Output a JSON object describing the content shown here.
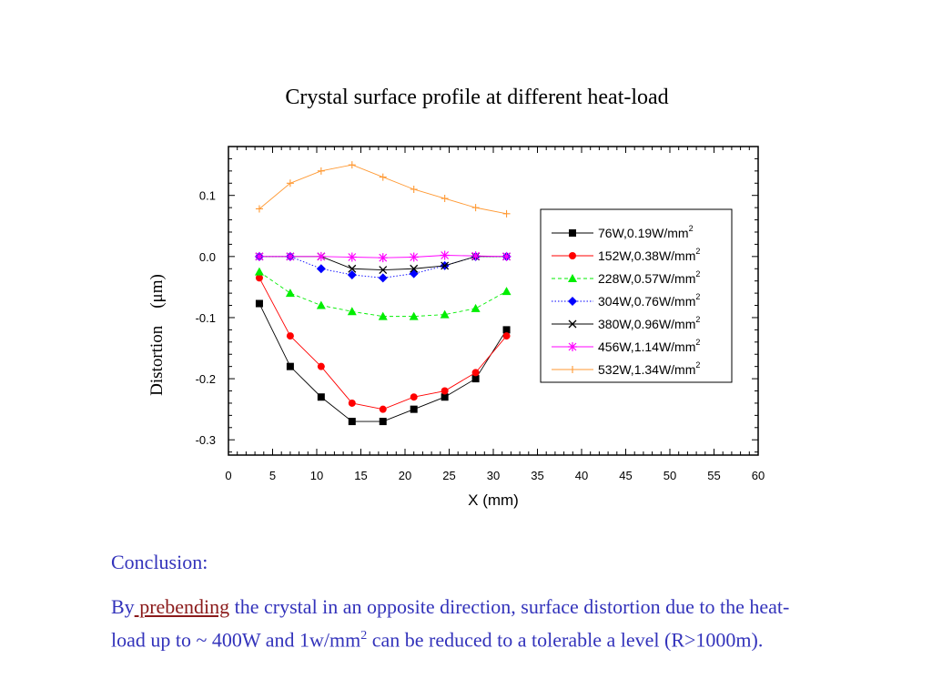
{
  "slide": {
    "title": "Crystal surface profile at different heat-load",
    "conclusion_heading": "Conclusion:",
    "conclusion": {
      "p1": "By",
      "highlight": " prebending",
      "p2": " the crystal in an opposite direction,  surface distortion due to the heat-load up to ~ 400W and 1w/mm",
      "sup": "2",
      "p3": "  can be reduced to a tolerable a level (R>1000m)."
    }
  },
  "chart_data": {
    "type": "line",
    "title": "Crystal surface profile at different heat-load",
    "xlabel": "X (mm)",
    "ylabel": "Distortion    (μm)",
    "xlim": [
      0,
      60
    ],
    "ylim": [
      -0.325,
      0.18
    ],
    "xticks": [
      0,
      5,
      10,
      15,
      20,
      25,
      30,
      35,
      40,
      45,
      50,
      55,
      60
    ],
    "yticks": [
      0.1,
      0.0,
      -0.1,
      -0.2,
      -0.3
    ],
    "ytick_labels": [
      "0.1",
      "0.0",
      "-0.1",
      "-0.2",
      "-0.3"
    ],
    "grid": false,
    "legend_position": "right",
    "x": [
      3.5,
      7,
      10.5,
      14,
      17.5,
      21,
      24.5,
      28,
      31.5
    ],
    "series": [
      {
        "name": "76W,0.19W/mm",
        "sup": "2",
        "color": "#000000",
        "marker": "square",
        "dash": "solid",
        "values": [
          -0.077,
          -0.18,
          -0.23,
          -0.27,
          -0.27,
          -0.25,
          -0.23,
          -0.2,
          -0.12
        ]
      },
      {
        "name": "152W,0.38W/mm",
        "sup": "2",
        "color": "#ff0000",
        "marker": "circle",
        "dash": "solid",
        "values": [
          -0.035,
          -0.13,
          -0.18,
          -0.24,
          -0.25,
          -0.23,
          -0.22,
          -0.19,
          -0.13
        ]
      },
      {
        "name": "228W,0.57W/mm",
        "sup": "2",
        "color": "#00ee00",
        "marker": "triangle",
        "dash": "dashed",
        "values": [
          -0.025,
          -0.06,
          -0.08,
          -0.09,
          -0.098,
          -0.098,
          -0.095,
          -0.085,
          -0.057
        ]
      },
      {
        "name": "304W,0.76W/mm",
        "sup": "2",
        "color": "#0000ff",
        "marker": "diamond",
        "dash": "dotted",
        "values": [
          0.0,
          0.0,
          -0.02,
          -0.03,
          -0.035,
          -0.028,
          -0.015,
          0.0,
          0.0
        ]
      },
      {
        "name": "380W,0.96W/mm",
        "sup": "2",
        "color": "#000000",
        "marker": "x",
        "dash": "solid",
        "values": [
          0.0,
          0.0,
          0.0,
          -0.02,
          -0.022,
          -0.02,
          -0.015,
          0.0,
          0.0
        ]
      },
      {
        "name": "456W,1.14W/mm",
        "sup": "2",
        "color": "#ff00ff",
        "marker": "star",
        "dash": "solid",
        "values": [
          0.0,
          0.0,
          0.0,
          -0.001,
          -0.002,
          -0.001,
          0.002,
          0.001,
          0.0
        ]
      },
      {
        "name": "532W,1.34W/mm",
        "sup": "2",
        "color": "#ff9933",
        "marker": "plus",
        "dash": "solid",
        "values": [
          0.078,
          0.12,
          0.14,
          0.15,
          0.13,
          0.11,
          0.095,
          0.08,
          0.07
        ]
      }
    ]
  }
}
